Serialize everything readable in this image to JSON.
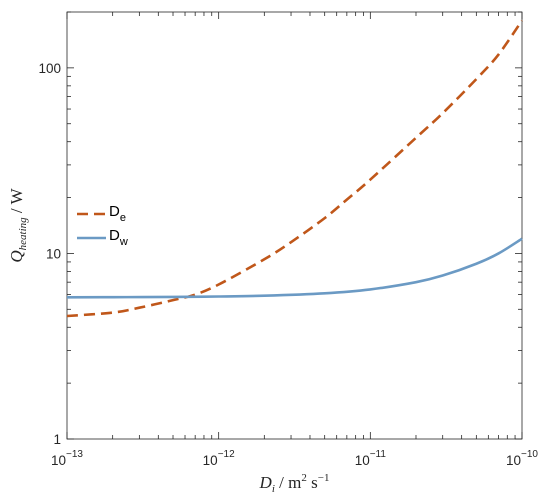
{
  "chart_data": {
    "type": "line",
    "xscale": "log",
    "yscale": "log",
    "xlim": [
      1e-13,
      1e-10
    ],
    "ylim": [
      1,
      200
    ],
    "grid": false,
    "legend_position": "left",
    "x_ticks": [
      {
        "value": 1e-13,
        "base": "10",
        "exp": "−13"
      },
      {
        "value": 1e-12,
        "base": "10",
        "exp": "−12"
      },
      {
        "value": 1e-11,
        "base": "10",
        "exp": "−11"
      },
      {
        "value": 1e-10,
        "base": "10",
        "exp": "−10"
      }
    ],
    "y_ticks": [
      {
        "value": 1,
        "label": "1"
      },
      {
        "value": 10,
        "label": "10"
      },
      {
        "value": 100,
        "label": "100"
      }
    ],
    "xlabel": {
      "var": "D",
      "sub": "i",
      "units_a": "m",
      "units_a_exp": "2",
      "units_b": "s",
      "units_b_exp": "−1"
    },
    "ylabel": {
      "var": "Q",
      "sub": "heating",
      "units": "W"
    },
    "series": [
      {
        "name": "D",
        "name_sub": "e",
        "color": "#c0571a",
        "dash": true,
        "x": [
          1e-13,
          2e-13,
          3e-13,
          5e-13,
          7e-13,
          1e-12,
          2e-12,
          3e-12,
          5e-12,
          7e-12,
          1e-11,
          2e-11,
          3e-11,
          5e-11,
          7e-11,
          1e-10
        ],
        "y": [
          4.6,
          4.8,
          5.1,
          5.6,
          6.0,
          6.8,
          9.3,
          11.5,
          15.5,
          19.5,
          25,
          42,
          57,
          87,
          118,
          180
        ]
      },
      {
        "name": "D",
        "name_sub": "w",
        "color": "#6b9ac4",
        "dash": false,
        "x": [
          1e-13,
          2e-13,
          5e-13,
          1e-12,
          2e-12,
          5e-12,
          1e-11,
          2e-11,
          3e-11,
          5e-11,
          7e-11,
          1e-10
        ],
        "y": [
          5.8,
          5.81,
          5.83,
          5.86,
          5.92,
          6.1,
          6.4,
          7.0,
          7.6,
          8.8,
          10.0,
          12.0
        ]
      }
    ]
  }
}
